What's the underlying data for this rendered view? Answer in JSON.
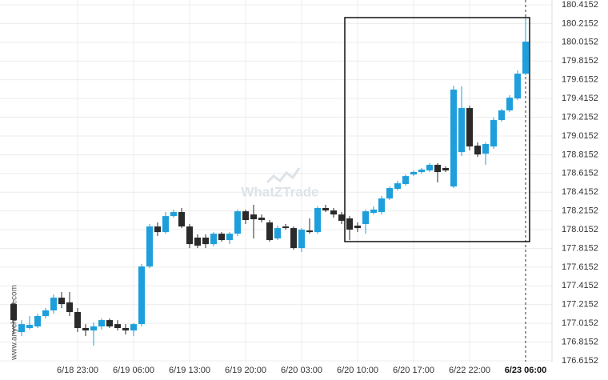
{
  "chart_data": {
    "type": "candlestick",
    "watermark": "WhatZTrade",
    "side_text": "www.anychartist.com",
    "categories": [
      null,
      null,
      null,
      null,
      null,
      null,
      null,
      null,
      "6/18 23:00",
      null,
      null,
      null,
      null,
      null,
      null,
      "6/19 06:00",
      null,
      null,
      null,
      null,
      null,
      null,
      "6/19 13:00",
      null,
      null,
      null,
      null,
      null,
      null,
      "6/19 20:00",
      null,
      null,
      null,
      null,
      null,
      null,
      "6/20 03:00",
      null,
      null,
      null,
      null,
      null,
      null,
      "6/20 10:00",
      null,
      null,
      null,
      null,
      null,
      null,
      "6/20 17:00",
      null,
      null,
      null,
      null,
      null,
      null,
      "6/22 22:00",
      null,
      null,
      null,
      null,
      null,
      null,
      "6/23 06:00"
    ],
    "open": [
      177.221,
      176.922,
      176.965,
      176.982,
      177.093,
      177.153,
      177.289,
      177.238,
      177.136,
      176.965,
      176.939,
      176.982,
      177.05,
      177.007,
      176.965,
      176.939,
      177.007,
      177.622,
      178.049,
      177.989,
      178.16,
      178.203,
      178.049,
      177.93,
      177.93,
      177.861,
      177.972,
      177.904,
      177.972,
      178.211,
      178.177,
      178.143,
      178.092,
      177.921,
      178.049,
      178.032,
      177.819,
      178.006,
      177.989,
      178.246,
      178.22,
      178.177,
      178.135,
      178.058,
      178.075,
      178.194,
      178.203,
      178.348,
      178.451,
      178.502,
      178.604,
      178.63,
      178.647,
      178.707,
      178.673,
      178.476,
      178.843,
      179.313,
      178.912,
      178.826,
      178.903,
      179.185,
      179.288,
      179.416,
      179.68
    ],
    "high": [
      177.264,
      177.05,
      177.093,
      177.118,
      177.179,
      177.323,
      177.349,
      177.349,
      177.179,
      177.007,
      177.024,
      177.067,
      177.067,
      177.05,
      177.007,
      177.016,
      177.648,
      178.075,
      178.092,
      178.203,
      178.229,
      178.246,
      178.075,
      177.964,
      177.964,
      177.989,
      177.989,
      177.989,
      178.229,
      178.229,
      178.28,
      178.177,
      178.118,
      178.058,
      178.075,
      178.049,
      178.032,
      178.135,
      178.263,
      178.28,
      178.246,
      178.203,
      178.16,
      178.092,
      178.229,
      178.263,
      178.374,
      178.476,
      178.536,
      178.604,
      178.647,
      178.673,
      178.724,
      178.724,
      178.69,
      179.552,
      179.544,
      179.339,
      178.946,
      178.946,
      179.211,
      179.305,
      179.45,
      179.715,
      180.278
    ],
    "low": [
      176.896,
      176.879,
      176.948,
      176.965,
      177.067,
      177.118,
      177.179,
      177.093,
      176.922,
      176.879,
      176.777,
      176.948,
      176.965,
      176.939,
      176.896,
      176.879,
      176.982,
      177.605,
      177.947,
      177.972,
      178.143,
      178.032,
      177.819,
      177.819,
      177.819,
      177.836,
      177.887,
      177.861,
      177.947,
      178.075,
      177.921,
      178.092,
      177.887,
      177.904,
      178.015,
      177.802,
      177.776,
      177.972,
      177.972,
      178.203,
      178.143,
      178.075,
      177.904,
      177.989,
      177.972,
      178.177,
      178.177,
      178.331,
      178.434,
      178.485,
      178.587,
      178.613,
      178.63,
      178.519,
      178.63,
      178.459,
      178.801,
      178.861,
      178.792,
      178.707,
      178.878,
      179.168,
      179.27,
      179.399,
      179.663
    ],
    "close": [
      177.05,
      177.007,
      176.999,
      177.093,
      177.153,
      177.289,
      177.221,
      177.136,
      176.965,
      176.939,
      176.982,
      177.05,
      176.982,
      176.965,
      176.939,
      177.007,
      177.622,
      178.049,
      177.989,
      178.16,
      178.203,
      178.049,
      177.861,
      177.844,
      177.861,
      177.972,
      177.904,
      177.972,
      178.211,
      178.118,
      178.126,
      178.118,
      177.904,
      178.032,
      178.032,
      177.819,
      178.015,
      177.989,
      178.246,
      178.22,
      178.177,
      178.109,
      178.015,
      178.032,
      178.211,
      178.229,
      178.348,
      178.459,
      178.51,
      178.587,
      178.63,
      178.656,
      178.707,
      178.63,
      178.647,
      179.51,
      179.313,
      178.903,
      178.818,
      178.929,
      179.185,
      179.288,
      179.424,
      179.68,
      180.022
    ],
    "up_color": "#1e9fdc",
    "down_color": "#2a2a2a",
    "ylim": [
      176.6066,
      180.4664
    ],
    "yticks": [
      176.6152,
      176.8152,
      177.0152,
      177.2152,
      177.4152,
      177.6152,
      177.8152,
      178.0152,
      178.2152,
      178.4152,
      178.6152,
      178.8152,
      179.0152,
      179.2152,
      179.4152,
      179.6152,
      179.8152,
      180.0152,
      180.2152,
      180.4152
    ],
    "grid": true
  }
}
